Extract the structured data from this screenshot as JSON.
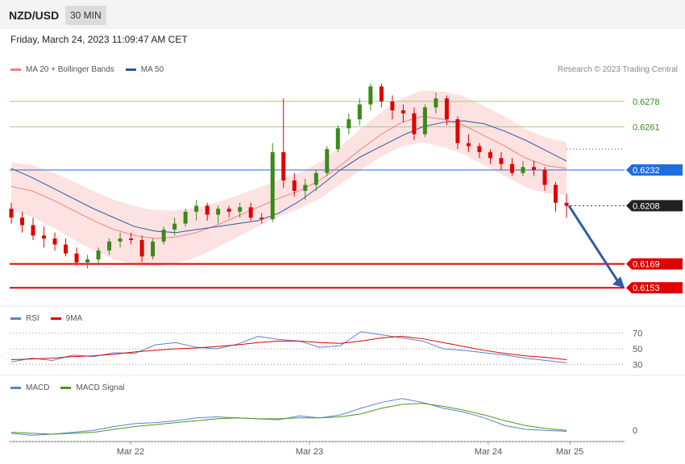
{
  "header": {
    "pair": "NZD/USD",
    "timeframe": "30 MIN",
    "datetime": "Friday, March 24, 2023 11:09:47 AM CET",
    "copyright": "Research © 2023 Trading Central"
  },
  "colors": {
    "ma20": "#f08080",
    "ma50": "#2a5aa0",
    "bands": "#fde2e2",
    "up": "#3a8a1a",
    "down": "#e00000",
    "pivot": "#1f6de0",
    "support": "#e00000",
    "rsi": "#5b7fd6",
    "rsi_ma": "#e00000",
    "macd": "#5b7fd6",
    "macd_signal": "#4a9a1a",
    "arrow": "#2f5da8"
  },
  "legend": {
    "ma20": "MA 20 + Bollinger Bands",
    "ma50": "MA 50",
    "rsi": "RSI",
    "rsi_ma": "9MA",
    "macd": "MACD",
    "macd_signal": "MACD Signal"
  },
  "chart_data": [
    {
      "type": "candlestick",
      "ylim": [
        0.6145,
        0.6292
      ],
      "x_labels": [
        "Mar 22",
        "Mar 23",
        "Mar 24",
        "Mar 25"
      ],
      "last_price": 0.6208,
      "levels": [
        {
          "value": 0.6278,
          "label": "0.6278",
          "kind": "resistance"
        },
        {
          "value": 0.6261,
          "label": "0.6261",
          "kind": "resistance"
        },
        {
          "value": 0.6232,
          "label": "0.6232",
          "kind": "pivot"
        },
        {
          "value": 0.6208,
          "label": "0.6208",
          "kind": "last"
        },
        {
          "value": 0.6169,
          "label": "0.6169",
          "kind": "support"
        },
        {
          "value": 0.6153,
          "label": "0.6153",
          "kind": "support"
        }
      ],
      "arrow": {
        "from": 0.6208,
        "to": 0.6153,
        "direction": "down"
      },
      "series": [
        {
          "name": "MA 20 + Bollinger Bands",
          "values": [
            0.6221,
            0.6218,
            0.6212,
            0.6205,
            0.6198,
            0.6192,
            0.6188,
            0.6186,
            0.6187,
            0.619,
            0.6195,
            0.6201,
            0.6207,
            0.6213,
            0.6218,
            0.6225,
            0.6235,
            0.6246,
            0.6256,
            0.6264,
            0.6268,
            0.6266,
            0.6262,
            0.6255,
            0.6248,
            0.624,
            0.6235,
            0.6233
          ]
        },
        {
          "name": "MA 50",
          "values": [
            0.6233,
            0.6227,
            0.622,
            0.6213,
            0.6206,
            0.62,
            0.6194,
            0.6191,
            0.619,
            0.6192,
            0.6194,
            0.6196,
            0.6198,
            0.6203,
            0.6211,
            0.6221,
            0.6232,
            0.6241,
            0.6248,
            0.6255,
            0.6261,
            0.6264,
            0.6265,
            0.6263,
            0.6258,
            0.6252,
            0.6245,
            0.6238
          ]
        }
      ]
    },
    {
      "type": "line",
      "ylim": [
        20,
        80
      ],
      "y_ticks": [
        30,
        50,
        70
      ],
      "series": [
        {
          "name": "RSI",
          "values": [
            33,
            38,
            35,
            42,
            40,
            45,
            44,
            55,
            58,
            52,
            50,
            56,
            66,
            62,
            60,
            52,
            54,
            72,
            68,
            64,
            60,
            50,
            48,
            45,
            42,
            38,
            35,
            32
          ]
        },
        {
          "name": "9MA",
          "values": [
            36,
            37,
            38,
            40,
            41,
            43,
            46,
            48,
            50,
            51,
            53,
            55,
            58,
            60,
            60,
            58,
            57,
            60,
            64,
            66,
            63,
            58,
            53,
            48,
            44,
            41,
            39,
            36
          ]
        }
      ]
    },
    {
      "type": "line",
      "y_ticks": [
        0
      ],
      "series": [
        {
          "name": "MACD",
          "values": [
            -0.0004,
            -0.0006,
            -0.0005,
            -0.0003,
            -0.0001,
            0.0003,
            0.0006,
            0.0007,
            0.0009,
            0.0012,
            0.0013,
            0.0012,
            0.0011,
            0.001,
            0.0014,
            0.0012,
            0.0015,
            0.0022,
            0.0028,
            0.0032,
            0.0028,
            0.0022,
            0.0018,
            0.0012,
            0.0004,
            0.0,
            -0.0001,
            -0.0002
          ]
        },
        {
          "name": "MACD Signal",
          "values": [
            -0.0003,
            -0.0004,
            -0.0005,
            -0.0004,
            -0.0003,
            0.0,
            0.0003,
            0.0005,
            0.0007,
            0.0009,
            0.0011,
            0.0012,
            0.0011,
            0.0011,
            0.0012,
            0.0012,
            0.0013,
            0.0016,
            0.0022,
            0.0026,
            0.0027,
            0.0024,
            0.002,
            0.0015,
            0.0009,
            0.0004,
            0.0001,
            -0.0001
          ]
        }
      ]
    }
  ],
  "candles": [
    [
      0.6206,
      0.621,
      0.6196,
      0.62
    ],
    [
      0.62,
      0.6204,
      0.619,
      0.6195
    ],
    [
      0.6195,
      0.62,
      0.6185,
      0.6188
    ],
    [
      0.6188,
      0.6194,
      0.618,
      0.6186
    ],
    [
      0.6186,
      0.619,
      0.6178,
      0.6182
    ],
    [
      0.6182,
      0.6186,
      0.6174,
      0.6176
    ],
    [
      0.6176,
      0.618,
      0.6168,
      0.617
    ],
    [
      0.617,
      0.6175,
      0.6166,
      0.6172
    ],
    [
      0.6172,
      0.618,
      0.6168,
      0.6178
    ],
    [
      0.6178,
      0.6186,
      0.6175,
      0.6184
    ],
    [
      0.6184,
      0.619,
      0.618,
      0.6186
    ],
    [
      0.6186,
      0.619,
      0.6182,
      0.6185
    ],
    [
      0.6185,
      0.6188,
      0.617,
      0.6174
    ],
    [
      0.6174,
      0.6186,
      0.6172,
      0.6184
    ],
    [
      0.6184,
      0.6194,
      0.6182,
      0.6192
    ],
    [
      0.6192,
      0.62,
      0.6188,
      0.6196
    ],
    [
      0.6196,
      0.6206,
      0.6194,
      0.6204
    ],
    [
      0.6204,
      0.6212,
      0.6198,
      0.6208
    ],
    [
      0.6208,
      0.621,
      0.6198,
      0.6202
    ],
    [
      0.6202,
      0.6208,
      0.6196,
      0.6206
    ],
    [
      0.6206,
      0.6208,
      0.62,
      0.6204
    ],
    [
      0.6204,
      0.621,
      0.62,
      0.6207
    ],
    [
      0.6207,
      0.621,
      0.6198,
      0.62
    ],
    [
      0.62,
      0.6203,
      0.6196,
      0.6199
    ],
    [
      0.6199,
      0.625,
      0.6197,
      0.6244
    ],
    [
      0.6244,
      0.628,
      0.622,
      0.6225
    ],
    [
      0.6225,
      0.623,
      0.6214,
      0.6218
    ],
    [
      0.6218,
      0.6226,
      0.6212,
      0.6222
    ],
    [
      0.6222,
      0.6232,
      0.6218,
      0.623
    ],
    [
      0.623,
      0.6248,
      0.6228,
      0.6246
    ],
    [
      0.6246,
      0.6262,
      0.6244,
      0.626
    ],
    [
      0.626,
      0.627,
      0.6256,
      0.6266
    ],
    [
      0.6266,
      0.628,
      0.6262,
      0.6276
    ],
    [
      0.6276,
      0.629,
      0.6272,
      0.6288
    ],
    [
      0.6288,
      0.629,
      0.6274,
      0.6278
    ],
    [
      0.6278,
      0.6282,
      0.6266,
      0.6272
    ],
    [
      0.6272,
      0.6276,
      0.6264,
      0.627
    ],
    [
      0.627,
      0.6274,
      0.6252,
      0.6256
    ],
    [
      0.6256,
      0.6276,
      0.6254,
      0.6274
    ],
    [
      0.6274,
      0.6284,
      0.627,
      0.628
    ],
    [
      0.628,
      0.6282,
      0.6262,
      0.6266
    ],
    [
      0.6266,
      0.6268,
      0.6246,
      0.625
    ],
    [
      0.625,
      0.6256,
      0.6244,
      0.6248
    ],
    [
      0.6248,
      0.625,
      0.624,
      0.6244
    ],
    [
      0.6244,
      0.6246,
      0.6236,
      0.624
    ],
    [
      0.624,
      0.6244,
      0.6232,
      0.6236
    ],
    [
      0.6236,
      0.624,
      0.6228,
      0.623
    ],
    [
      0.623,
      0.6238,
      0.6228,
      0.6234
    ],
    [
      0.6234,
      0.6238,
      0.6228,
      0.6232
    ],
    [
      0.6232,
      0.6234,
      0.6218,
      0.6222
    ],
    [
      0.6222,
      0.6224,
      0.6204,
      0.621
    ],
    [
      0.621,
      0.6216,
      0.62,
      0.6208
    ]
  ]
}
